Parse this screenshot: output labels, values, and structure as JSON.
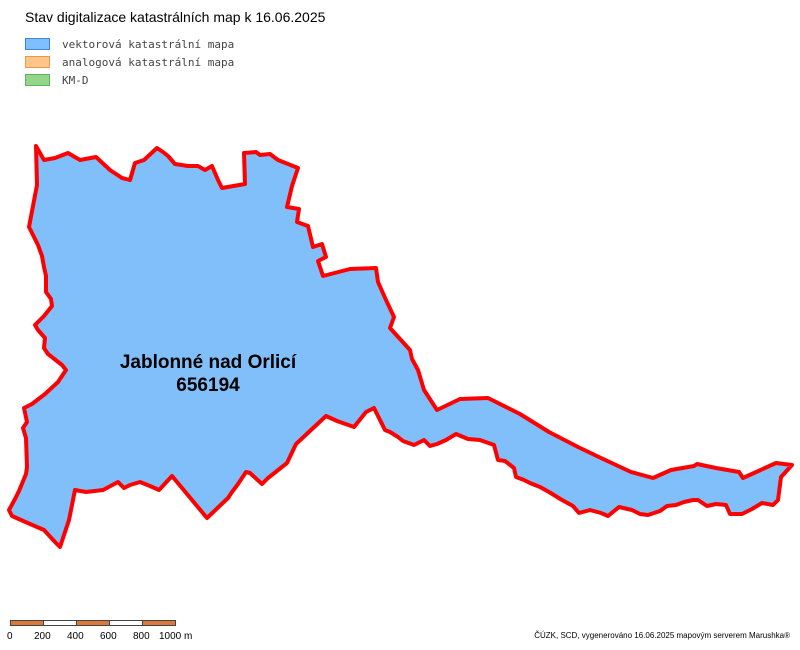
{
  "header": {
    "title": "Stav digitalizace katastrálních map k 16.06.2025"
  },
  "legend": {
    "items": [
      {
        "label": "vektorová katastrální mapa",
        "fill": "#7fbfff",
        "border": "#3a86d8"
      },
      {
        "label": "analogová katastrální mapa",
        "fill": "#ffc48a",
        "border": "#e89a4c"
      },
      {
        "label": "KM-D",
        "fill": "#93d68c",
        "border": "#5fb358"
      }
    ]
  },
  "map": {
    "area_name": "Jablonné nad Orlicí",
    "area_code": "656194",
    "fill_color": "#80bff9",
    "boundary_color": "#ff0000"
  },
  "scale": {
    "labels": [
      "0",
      "200",
      "400",
      "600",
      "800",
      "1000 m"
    ],
    "colors": [
      "#d9793a",
      "#ffffff"
    ]
  },
  "credit": "ČÚZK, SCD, vygenerováno 16.06.2025 mapovým serverem Marushka®"
}
